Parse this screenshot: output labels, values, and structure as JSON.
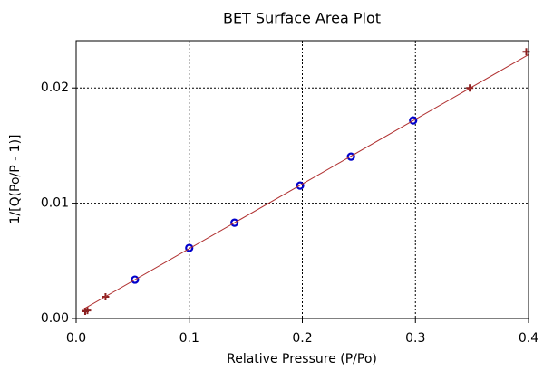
{
  "chart_data": {
    "type": "scatter",
    "title": "BET Surface Area Plot",
    "x_label": "Relative Pressure (P/Po)",
    "y_label": "1/[Q(Po/P - 1)]",
    "xlim": [
      0,
      0.4
    ],
    "ylim": [
      0,
      0.0241
    ],
    "xticks": [
      {
        "value": 0,
        "label": "0.0"
      },
      0.1,
      0.2,
      0.3,
      0.4
    ],
    "yticks": [
      {
        "value": 0,
        "label": "0.00"
      },
      0.01,
      0.02
    ],
    "grid": true,
    "series": [
      {
        "marker": "circle",
        "color": "#0000cc",
        "x": [
          0.052,
          0.1,
          0.14,
          0.198,
          0.243,
          0.298
        ],
        "values": [
          0.00337,
          0.00612,
          0.00831,
          0.01153,
          0.01404,
          0.01718
        ]
      },
      {
        "marker": "plus",
        "color": "#8b2020",
        "x": [
          0.008,
          0.01,
          0.026,
          0.348,
          0.398
        ],
        "values": [
          0.00063,
          0.0007,
          0.00188,
          0.02,
          0.02314
        ]
      },
      {
        "marker": "line",
        "color": "#b03030",
        "x": [
          0.005,
          0.4
        ],
        "values": [
          0.00073,
          0.02289
        ]
      }
    ]
  }
}
